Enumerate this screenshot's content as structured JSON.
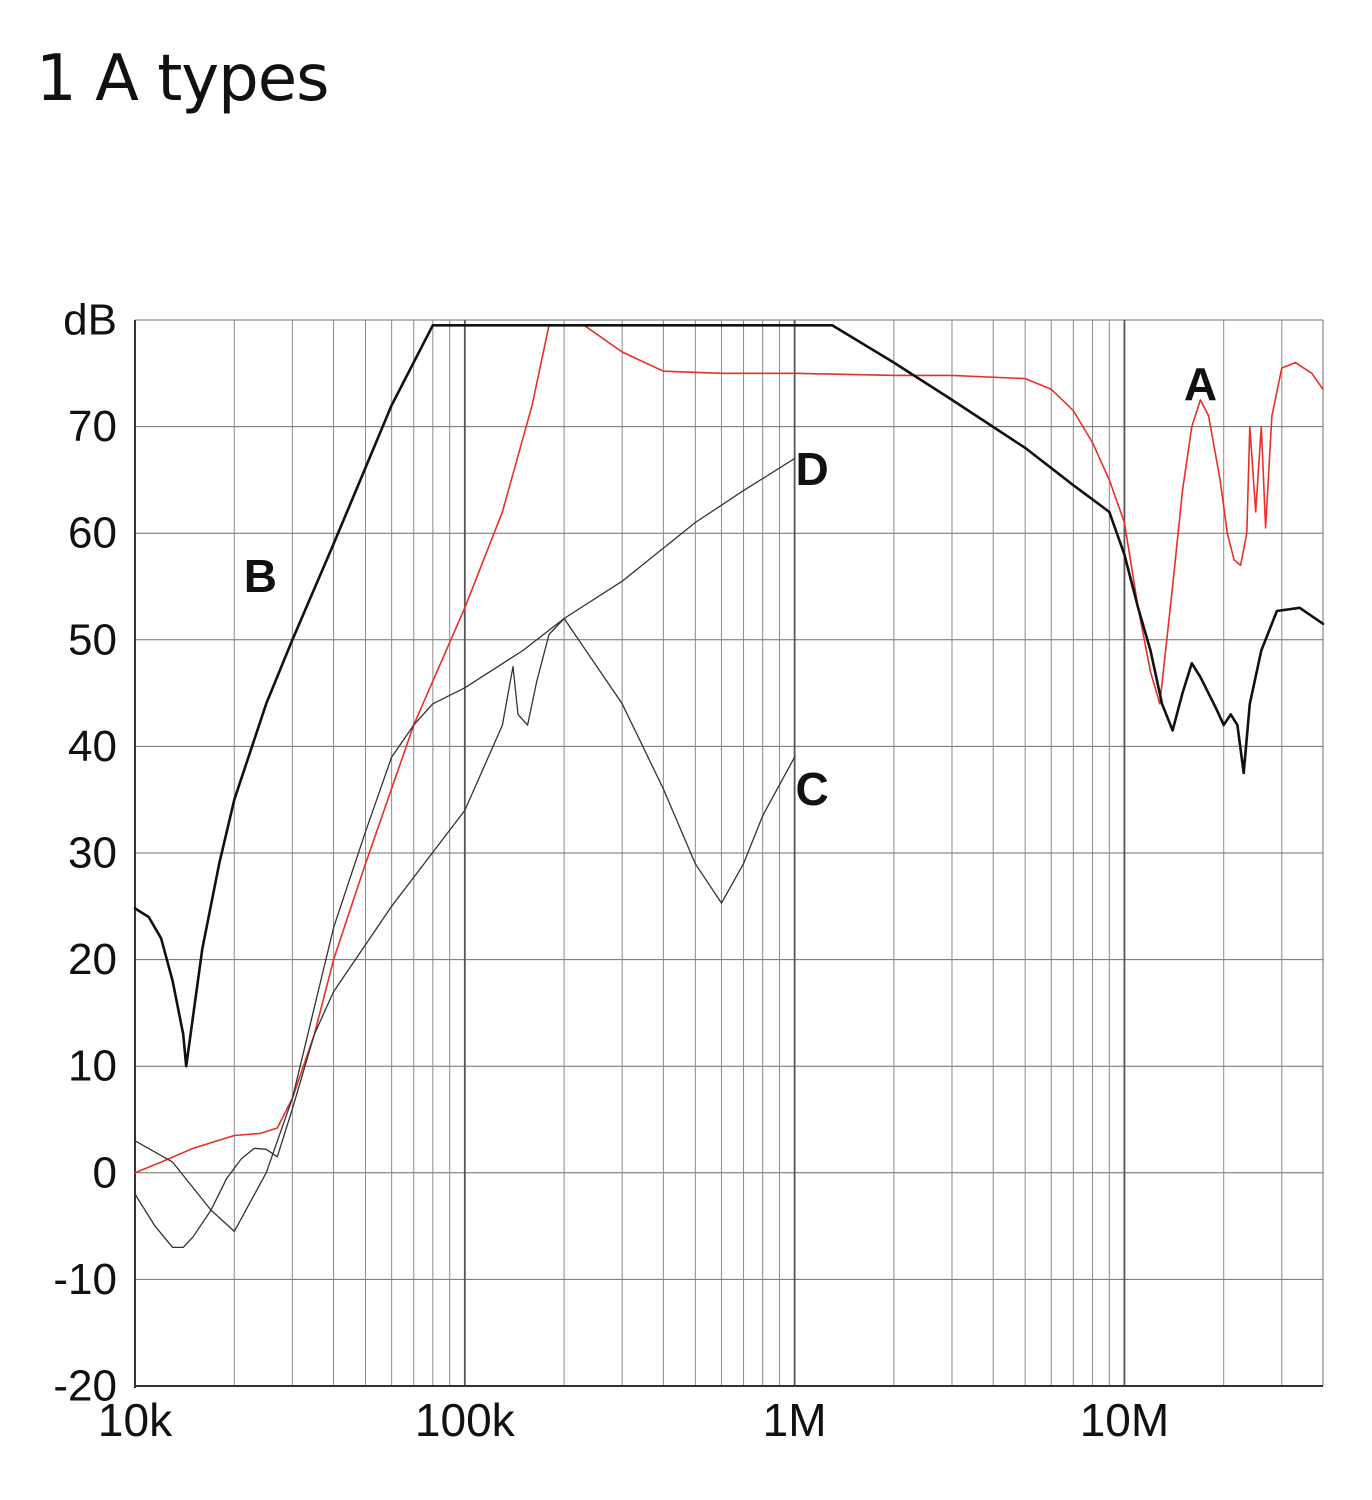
{
  "title": "1 A types",
  "chart_data": {
    "type": "line",
    "title": "1 A types",
    "xlabel": "",
    "ylabel": "dB",
    "xscale": "log",
    "xlim": [
      10000,
      40000000
    ],
    "ylim": [
      -20,
      80
    ],
    "x_ticks": [
      {
        "value": 10000,
        "label": "10k"
      },
      {
        "value": 100000,
        "label": "100k"
      },
      {
        "value": 1000000,
        "label": "1M"
      },
      {
        "value": 10000000,
        "label": "10M"
      }
    ],
    "y_ticks": [
      {
        "value": 80,
        "label": "dB"
      },
      {
        "value": 70,
        "label": "70"
      },
      {
        "value": 60,
        "label": "60"
      },
      {
        "value": 50,
        "label": "50"
      },
      {
        "value": 40,
        "label": "40"
      },
      {
        "value": 30,
        "label": "30"
      },
      {
        "value": 20,
        "label": "20"
      },
      {
        "value": 10,
        "label": "10"
      },
      {
        "value": 0,
        "label": "0"
      },
      {
        "value": -10,
        "label": "-10"
      },
      {
        "value": -20,
        "label": "-20"
      }
    ],
    "grid": true,
    "legend": "none",
    "series": [
      {
        "name": "A",
        "color": "#e8302a",
        "stroke_width": 1.6,
        "label_point": [
          17000000,
          74
        ],
        "points": [
          [
            10000,
            0
          ],
          [
            12000,
            1
          ],
          [
            15000,
            2.3
          ],
          [
            20000,
            3.5
          ],
          [
            24000,
            3.7
          ],
          [
            27000,
            4.2
          ],
          [
            30000,
            7
          ],
          [
            35000,
            13
          ],
          [
            40000,
            20
          ],
          [
            50000,
            29
          ],
          [
            70000,
            42
          ],
          [
            100000,
            53
          ],
          [
            130000,
            62
          ],
          [
            160000,
            72
          ],
          [
            180000,
            79.5
          ],
          [
            230000,
            79.5
          ],
          [
            300000,
            77
          ],
          [
            400000,
            75.2
          ],
          [
            600000,
            75
          ],
          [
            1000000,
            75
          ],
          [
            2000000,
            74.8
          ],
          [
            3000000,
            74.8
          ],
          [
            5000000,
            74.5
          ],
          [
            6000000,
            73.5
          ],
          [
            7000000,
            71.5
          ],
          [
            8000000,
            68.5
          ],
          [
            9000000,
            65
          ],
          [
            10000000,
            61
          ],
          [
            11000000,
            53
          ],
          [
            12000000,
            47
          ],
          [
            12800000,
            44
          ],
          [
            14000000,
            55
          ],
          [
            15000000,
            64
          ],
          [
            16000000,
            70
          ],
          [
            17000000,
            72.5
          ],
          [
            18000000,
            71
          ],
          [
            19500000,
            65
          ],
          [
            20500000,
            60
          ],
          [
            21500000,
            57.5
          ],
          [
            22500000,
            57
          ],
          [
            23500000,
            60
          ],
          [
            24000000,
            70
          ],
          [
            25000000,
            62
          ],
          [
            26000000,
            70
          ],
          [
            26800000,
            60.5
          ],
          [
            28000000,
            71
          ],
          [
            30000000,
            75.5
          ],
          [
            33000000,
            76
          ],
          [
            37000000,
            75
          ],
          [
            40000000,
            73.5
          ]
        ]
      },
      {
        "name": "B",
        "color": "#111111",
        "stroke_width": 2.6,
        "label_point": [
          24000,
          56
        ],
        "points": [
          [
            10000,
            24.8
          ],
          [
            11000,
            24
          ],
          [
            12000,
            22
          ],
          [
            13000,
            18
          ],
          [
            14000,
            13
          ],
          [
            14300,
            10
          ],
          [
            16000,
            21
          ],
          [
            18000,
            29
          ],
          [
            20000,
            35
          ],
          [
            25000,
            44
          ],
          [
            30000,
            50
          ],
          [
            40000,
            59
          ],
          [
            60000,
            72
          ],
          [
            80000,
            79.5
          ],
          [
            100000,
            79.5
          ],
          [
            200000,
            79.5
          ],
          [
            500000,
            79.5
          ],
          [
            1000000,
            79.5
          ],
          [
            1300000,
            79.5
          ],
          [
            2000000,
            76
          ],
          [
            3000000,
            72.5
          ],
          [
            5000000,
            68
          ],
          [
            7000000,
            64.5
          ],
          [
            9000000,
            62
          ],
          [
            10000000,
            58
          ],
          [
            11000000,
            53
          ],
          [
            12000000,
            49
          ],
          [
            13000000,
            44
          ],
          [
            14000000,
            41.5
          ],
          [
            15000000,
            45
          ],
          [
            16000000,
            47.8
          ],
          [
            17000000,
            46.5
          ],
          [
            19000000,
            43.5
          ],
          [
            20000000,
            42
          ],
          [
            21000000,
            43
          ],
          [
            22000000,
            42
          ],
          [
            23000000,
            37.5
          ],
          [
            24000000,
            44
          ],
          [
            26000000,
            49
          ],
          [
            29000000,
            52.7
          ],
          [
            34000000,
            53
          ],
          [
            40000000,
            51.5
          ]
        ]
      },
      {
        "name": "C",
        "color": "#333333",
        "stroke_width": 1.3,
        "label_point": [
          1130000,
          36
        ],
        "points": [
          [
            10000,
            -2
          ],
          [
            11500,
            -5
          ],
          [
            13000,
            -7
          ],
          [
            14000,
            -7
          ],
          [
            15000,
            -6
          ],
          [
            17000,
            -3.5
          ],
          [
            19000,
            -0.5
          ],
          [
            21000,
            1.3
          ],
          [
            23000,
            2.3
          ],
          [
            25000,
            2.2
          ],
          [
            27000,
            1.5
          ],
          [
            30000,
            6
          ],
          [
            35000,
            13
          ],
          [
            40000,
            17
          ],
          [
            60000,
            25
          ],
          [
            100000,
            34
          ],
          [
            130000,
            42
          ],
          [
            140000,
            47.5
          ],
          [
            145000,
            43
          ],
          [
            155000,
            42
          ],
          [
            165000,
            46
          ],
          [
            180000,
            50.5
          ],
          [
            200000,
            52
          ],
          [
            300000,
            44
          ],
          [
            400000,
            36
          ],
          [
            500000,
            29
          ],
          [
            600000,
            25.3
          ],
          [
            700000,
            29
          ],
          [
            800000,
            33.5
          ],
          [
            1000000,
            39
          ]
        ]
      },
      {
        "name": "D",
        "color": "#333333",
        "stroke_width": 1.3,
        "label_point": [
          1130000,
          66
        ],
        "points": [
          [
            10000,
            3
          ],
          [
            13000,
            1
          ],
          [
            17000,
            -3.5
          ],
          [
            20000,
            -5.5
          ],
          [
            25000,
            0
          ],
          [
            30000,
            7
          ],
          [
            40000,
            23
          ],
          [
            50000,
            32
          ],
          [
            60000,
            39
          ],
          [
            70000,
            42
          ],
          [
            80000,
            44
          ],
          [
            100000,
            45.5
          ],
          [
            150000,
            49
          ],
          [
            200000,
            52
          ],
          [
            300000,
            55.5
          ],
          [
            500000,
            61
          ],
          [
            700000,
            64
          ],
          [
            1000000,
            67
          ]
        ]
      }
    ]
  }
}
